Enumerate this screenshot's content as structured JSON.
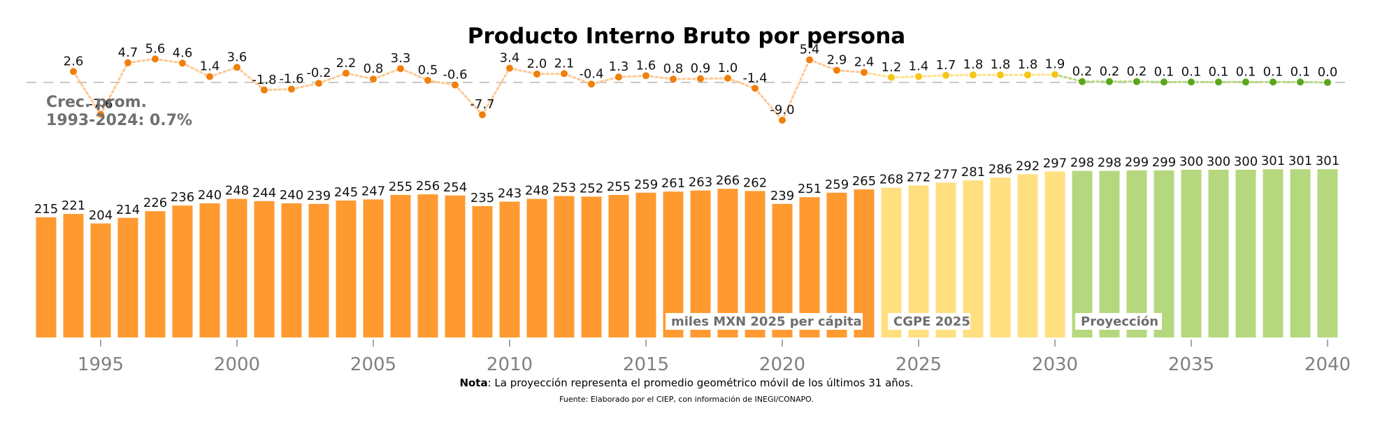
{
  "chart_data": {
    "type": "bar",
    "title": "Producto Interno Bruto por persona",
    "years": [
      1993,
      1994,
      1995,
      1996,
      1997,
      1998,
      1999,
      2000,
      2001,
      2002,
      2003,
      2004,
      2005,
      2006,
      2007,
      2008,
      2009,
      2010,
      2011,
      2012,
      2013,
      2014,
      2015,
      2016,
      2017,
      2018,
      2019,
      2020,
      2021,
      2022,
      2023,
      2024,
      2025,
      2026,
      2027,
      2028,
      2029,
      2030,
      2031,
      2032,
      2033,
      2034,
      2035,
      2036,
      2037,
      2038,
      2039,
      2040
    ],
    "levels": [
      215,
      221,
      204,
      214,
      226,
      236,
      240,
      248,
      244,
      240,
      239,
      245,
      247,
      255,
      256,
      254,
      235,
      243,
      248,
      253,
      252,
      255,
      259,
      261,
      263,
      266,
      262,
      239,
      251,
      259,
      265,
      268,
      272,
      277,
      281,
      286,
      292,
      297,
      298,
      298,
      299,
      299,
      300,
      300,
      300,
      301,
      301,
      301
    ],
    "growth": [
      2.6,
      -7.6,
      4.7,
      5.6,
      4.6,
      1.4,
      3.6,
      -1.8,
      -1.6,
      -0.2,
      2.2,
      0.8,
      3.3,
      0.5,
      -0.6,
      -7.7,
      3.4,
      2.0,
      2.1,
      -0.4,
      1.3,
      1.6,
      0.8,
      0.9,
      1.0,
      -1.4,
      -9.0,
      5.4,
      2.9,
      2.4,
      1.2,
      1.4,
      1.7,
      1.8,
      1.8,
      1.8,
      1.9,
      0.2,
      0.2,
      0.2,
      0.1,
      0.1,
      0.1,
      0.1,
      0.1,
      0.1,
      0.0
    ],
    "growth_start_year": 1994,
    "series": [
      {
        "name": "miles MXN 2025 per cápita",
        "from": 1993,
        "to": 2023,
        "color": "#ff9a30",
        "point_color": "#f07f0c"
      },
      {
        "name": "CGPE 2025",
        "from": 2024,
        "to": 2030,
        "color": "#ffdf80",
        "point_color": "#f5c518"
      },
      {
        "name": "Proyección",
        "from": 2031,
        "to": 2040,
        "color": "#b5d87f",
        "point_color": "#5aa61a"
      }
    ],
    "x_ticks": [
      "1995",
      "2000",
      "2005",
      "2010",
      "2015",
      "2020",
      "2025",
      "2030",
      "2035",
      "2040"
    ],
    "average_label_line1": "Crec. prom.",
    "average_label_line2": "1993-2024: 0.7%"
  },
  "note_bold": "Nota",
  "note_text": ": La proyección representa el promedio geométrico móvil de los últimos 31 años.",
  "source": "Fuente: Elaborado por el CIEP, con información de INEGI/CONAPO."
}
